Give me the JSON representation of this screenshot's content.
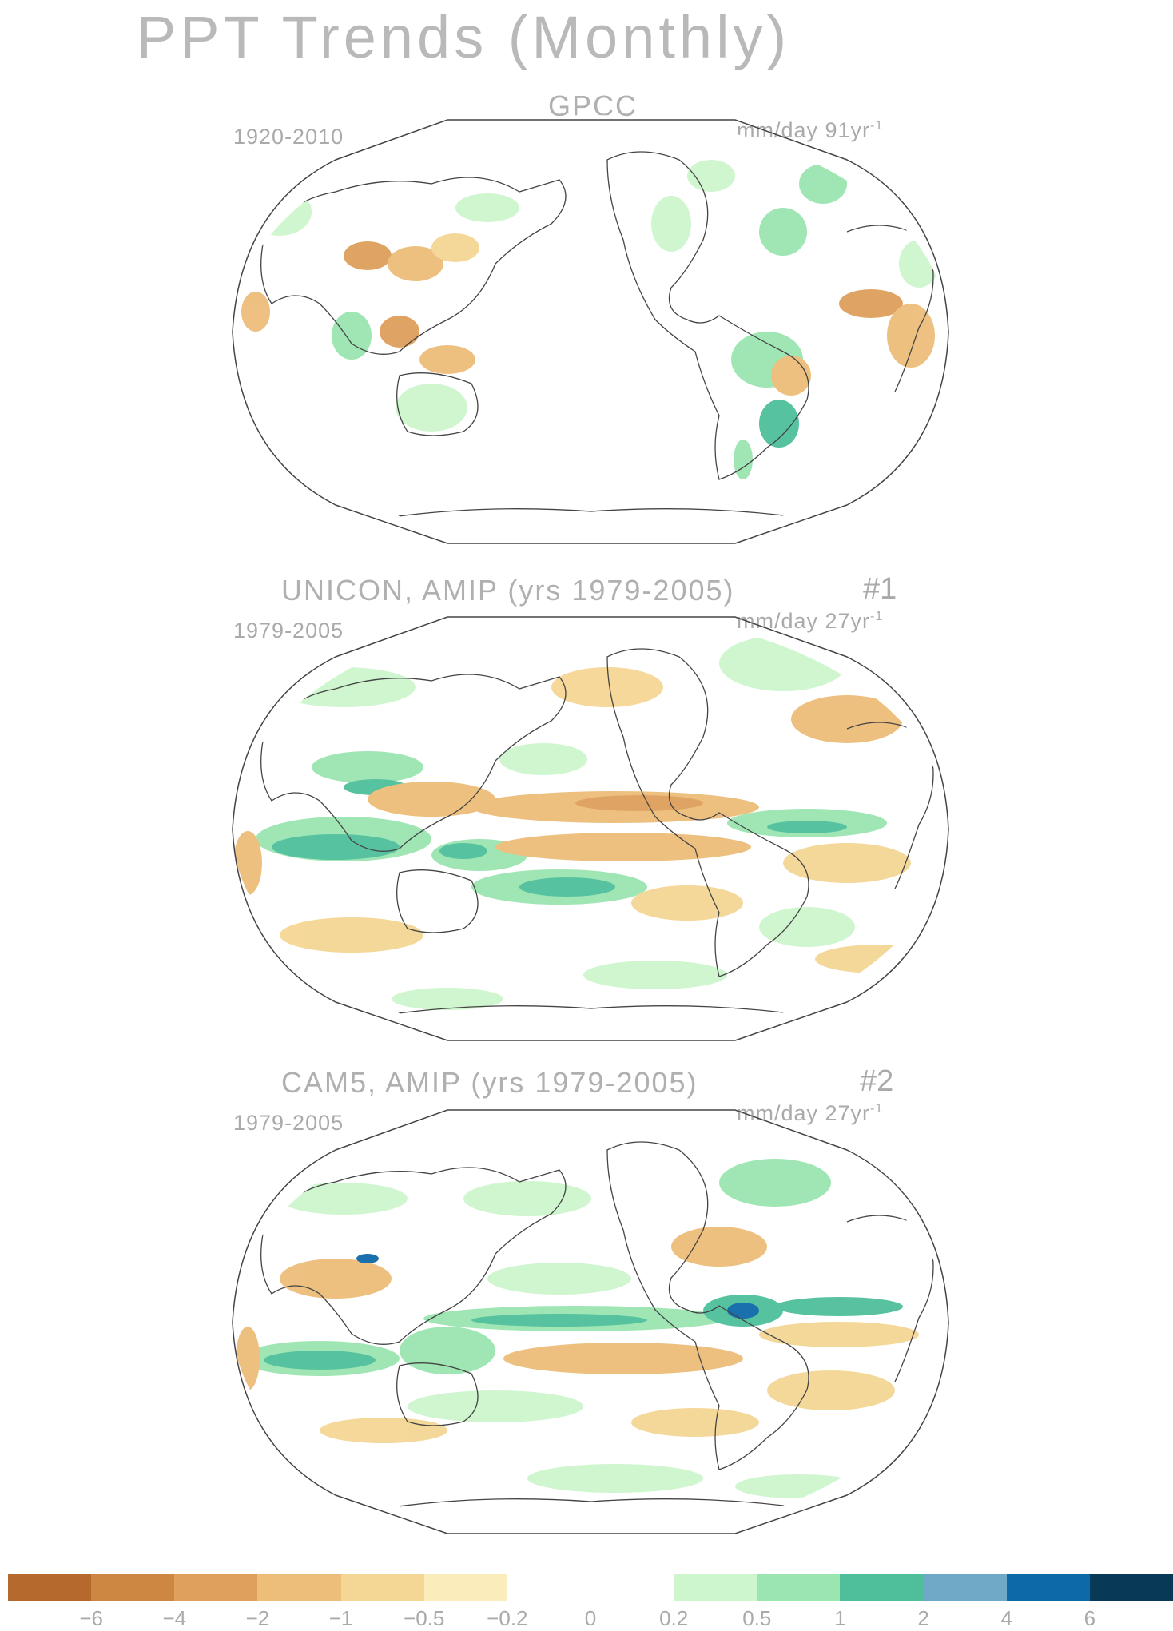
{
  "title": "PPT Trends (Monthly)",
  "panels": [
    {
      "title": "GPCC",
      "period": "1920-2010",
      "units": "mm/day 91yr",
      "units_exp": "-1",
      "number": ""
    },
    {
      "title": "UNICON, AMIP (yrs 1979-2005)",
      "period": "1979-2005",
      "units": "mm/day 27yr",
      "units_exp": "-1",
      "number": "#1"
    },
    {
      "title": "CAM5, AMIP (yrs 1979-2005)",
      "period": "1979-2005",
      "units": "mm/day 27yr",
      "units_exp": "-1",
      "number": "#2"
    }
  ],
  "colorbar": {
    "colors": [
      "#b5692c",
      "#cd8743",
      "#dea05c",
      "#edbd7a",
      "#f4d695",
      "#fbedbb",
      "#ffffff",
      "#ffffff",
      "#cdf6cd",
      "#9ae5b0",
      "#4fbf9b",
      "#6fa9c8",
      "#0d69a8",
      "#083a57"
    ],
    "labels": [
      "-6",
      "-4",
      "-2",
      "-1",
      "-0.5",
      "-0.2",
      "0",
      "0.2",
      "0.5",
      "1",
      "2",
      "4",
      "6"
    ]
  },
  "map_colors": {
    "dry_strong": "#dea05c",
    "dry": "#edbd7a",
    "dry_light": "#f4d695",
    "wet_light": "#cdf6cd",
    "wet": "#9ae5b0",
    "wet_strong": "#4fbf9b",
    "wet_max": "#0d69a8"
  }
}
